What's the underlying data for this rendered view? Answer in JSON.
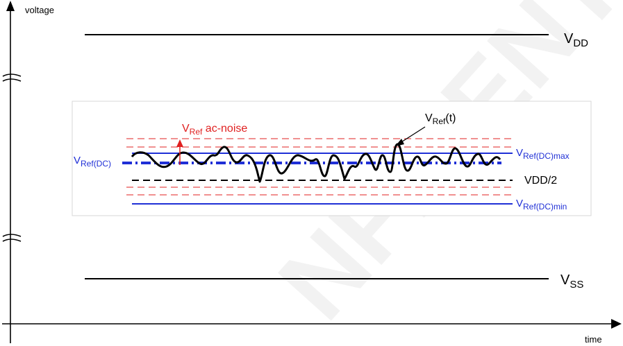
{
  "axes": {
    "y_label": "voltage",
    "x_label": "time"
  },
  "levels": {
    "vdd": {
      "main": "V",
      "sub": "DD"
    },
    "vss": {
      "main": "V",
      "sub": "SS"
    }
  },
  "inset": {
    "vref_t": {
      "main": "V",
      "sub": "Ref",
      "suffix": "(t)"
    },
    "ac_noise": {
      "main": "V",
      "sub": "Ref",
      "suffix": " ac-noise"
    },
    "vref_dc": {
      "main": "V",
      "sub": "Ref(DC)"
    },
    "vref_dc_max": {
      "main": "V",
      "sub": "Ref(DC)max"
    },
    "vref_dc_min": {
      "main": "V",
      "sub": "Ref(DC)min"
    },
    "vdd_half": "VDD/2"
  },
  "watermark": "NFIDENTIAL",
  "colors": {
    "black": "#000000",
    "blue": "#1f2fd6",
    "red": "#e02020",
    "inset_border": "#d7d7d7",
    "watermark": "#f2f2f2"
  }
}
